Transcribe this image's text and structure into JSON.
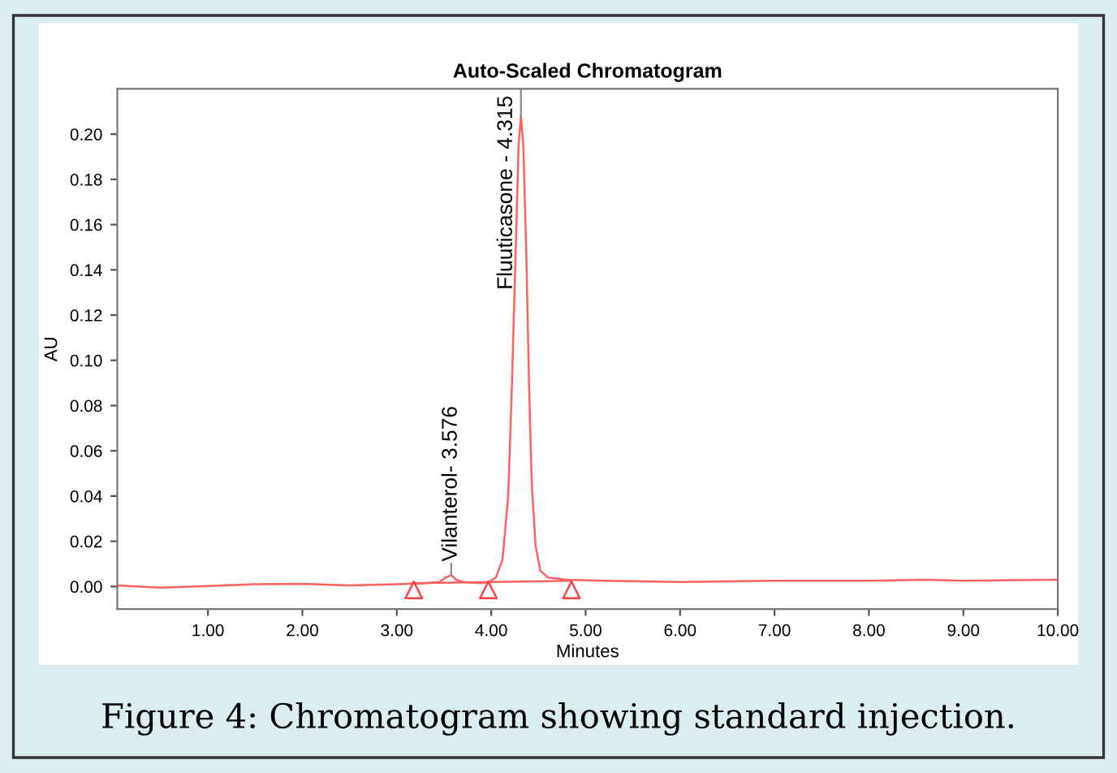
{
  "chart_data": {
    "type": "line",
    "title": "Auto-Scaled Chromatogram",
    "xlabel": "Minutes",
    "ylabel": "AU",
    "xlim": [
      0.04,
      10.0
    ],
    "ylim": [
      -0.01,
      0.22
    ],
    "xticks": [
      {
        "value": 1.0,
        "label": "1.00"
      },
      {
        "value": 2.0,
        "label": "2.00"
      },
      {
        "value": 3.0,
        "label": "3.00"
      },
      {
        "value": 4.0,
        "label": "4.00"
      },
      {
        "value": 5.0,
        "label": "5.00"
      },
      {
        "value": 6.0,
        "label": "6.00"
      },
      {
        "value": 7.0,
        "label": "7.00"
      },
      {
        "value": 8.0,
        "label": "8.00"
      },
      {
        "value": 9.0,
        "label": "9.00"
      },
      {
        "value": 10.0,
        "label": "10.00"
      }
    ],
    "yticks": [
      {
        "value": 0.0,
        "label": "0.00"
      },
      {
        "value": 0.02,
        "label": "0.02"
      },
      {
        "value": 0.04,
        "label": "0.04"
      },
      {
        "value": 0.06,
        "label": "0.06"
      },
      {
        "value": 0.08,
        "label": "0.08"
      },
      {
        "value": 0.1,
        "label": "0.10"
      },
      {
        "value": 0.12,
        "label": "0.12"
      },
      {
        "value": 0.14,
        "label": "0.14"
      },
      {
        "value": 0.16,
        "label": "0.16"
      },
      {
        "value": 0.18,
        "label": "0.18"
      },
      {
        "value": 0.2,
        "label": "0.20"
      }
    ],
    "grid": false,
    "legend": false,
    "series": [
      {
        "color": "#ff6060",
        "x": [
          0.04,
          0.5,
          1.0,
          1.5,
          2.0,
          2.5,
          3.0,
          3.3,
          3.45,
          3.52,
          3.576,
          3.63,
          3.7,
          3.9,
          3.97,
          4.05,
          4.12,
          4.18,
          4.22,
          4.26,
          4.29,
          4.315,
          4.34,
          4.37,
          4.4,
          4.43,
          4.47,
          4.52,
          4.6,
          4.8,
          5.2,
          6.0,
          7.0,
          8.0,
          8.6,
          9.0,
          10.0
        ],
        "values": [
          0.0005,
          -0.0005,
          0.0002,
          0.001,
          0.0012,
          0.0005,
          0.001,
          0.0015,
          0.002,
          0.004,
          0.005,
          0.003,
          0.002,
          0.0015,
          0.002,
          0.004,
          0.012,
          0.04,
          0.09,
          0.15,
          0.195,
          0.208,
          0.195,
          0.15,
          0.09,
          0.045,
          0.018,
          0.007,
          0.004,
          0.003,
          0.0025,
          0.002,
          0.0025,
          0.0025,
          0.003,
          0.0025,
          0.003
        ]
      },
      {
        "color": "#ff6060",
        "x": [
          3.18,
          4.85
        ],
        "values": [
          0.0015,
          0.0025
        ]
      },
      {
        "type": "scatter",
        "marker": "triangle",
        "color": "#ff4040",
        "x": [
          3.18,
          3.97,
          4.85
        ],
        "values": [
          -0.0015,
          -0.0015,
          -0.0015
        ]
      }
    ],
    "annotations": [
      {
        "text": "Vilanterol- 3.576",
        "x": 3.576,
        "y": 0.005
      },
      {
        "text": "Fluuticasone - 4.315",
        "x": 4.315,
        "y": 0.208
      },
      "Figure 4: Chromatogram showing standard injection."
    ]
  }
}
